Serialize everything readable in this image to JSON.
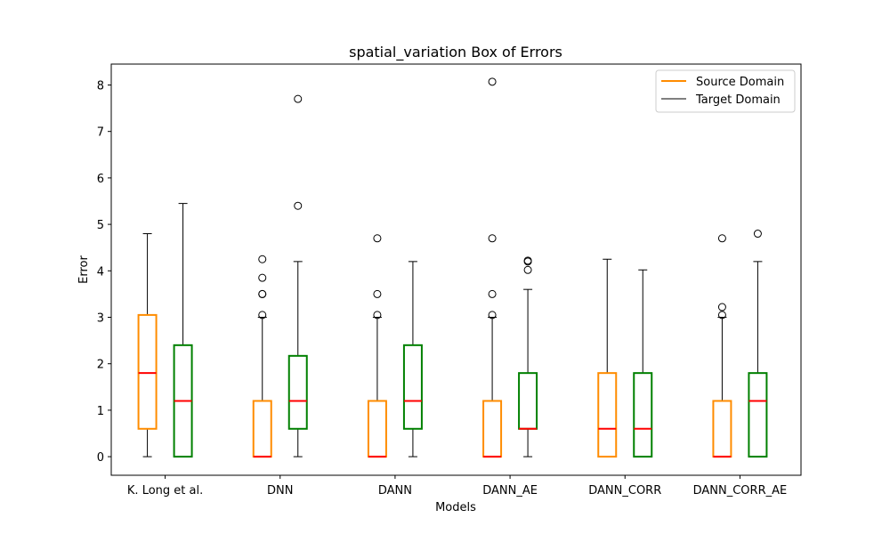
{
  "chart_data": {
    "type": "box",
    "title": "spatial_variation Box of Errors",
    "xlabel": "Models",
    "ylabel": "Error",
    "ylim": [
      -0.4,
      8.45
    ],
    "yticks": [
      0,
      1,
      2,
      3,
      4,
      5,
      6,
      7,
      8
    ],
    "grid": false,
    "legend_position": "top-right",
    "categories": [
      "K. Long et al.",
      "DNN",
      "DANN",
      "DANN_AE",
      "DANN_CORR",
      "DANN_CORR_AE"
    ],
    "series": [
      {
        "name": "Source Domain",
        "box_color": "#ff8c00",
        "legend_line_color": "#ff8c00",
        "median_color": "#ff0000",
        "boxes": [
          {
            "whislo": 0,
            "q1": 0.6,
            "med": 1.8,
            "q3": 3.05,
            "whishi": 4.8,
            "fliers": []
          },
          {
            "whislo": 0,
            "q1": 0,
            "med": 0,
            "q3": 1.2,
            "whishi": 3.0,
            "fliers": [
              3.05,
              3.5,
              3.5,
              3.85,
              4.25
            ]
          },
          {
            "whislo": 0,
            "q1": 0,
            "med": 0,
            "q3": 1.2,
            "whishi": 3.0,
            "fliers": [
              3.05,
              3.5,
              4.7
            ]
          },
          {
            "whislo": 0,
            "q1": 0,
            "med": 0,
            "q3": 1.2,
            "whishi": 3.0,
            "fliers": [
              3.05,
              3.5,
              4.7,
              8.07
            ]
          },
          {
            "whislo": 0,
            "q1": 0,
            "med": 0.6,
            "q3": 1.8,
            "whishi": 4.25,
            "fliers": []
          },
          {
            "whislo": 0,
            "q1": 0,
            "med": 0,
            "q3": 1.2,
            "whishi": 3.0,
            "fliers": [
              3.05,
              3.22,
              4.7
            ]
          }
        ]
      },
      {
        "name": "Target Domain",
        "box_color": "#008000",
        "legend_line_color": "#000000",
        "median_color": "#ff0000",
        "boxes": [
          {
            "whislo": 0,
            "q1": 0,
            "med": 1.2,
            "q3": 2.4,
            "whishi": 5.45,
            "fliers": []
          },
          {
            "whislo": 0,
            "q1": 0.6,
            "med": 1.2,
            "q3": 2.17,
            "whishi": 4.2,
            "fliers": [
              5.4,
              7.7
            ]
          },
          {
            "whislo": 0,
            "q1": 0.6,
            "med": 1.2,
            "q3": 2.4,
            "whishi": 4.2,
            "fliers": []
          },
          {
            "whislo": 0,
            "q1": 0.6,
            "med": 0.6,
            "q3": 1.8,
            "whishi": 3.6,
            "fliers": [
              4.02,
              4.2,
              4.22
            ]
          },
          {
            "whislo": 0,
            "q1": 0,
            "med": 0.6,
            "q3": 1.8,
            "whishi": 4.02,
            "fliers": []
          },
          {
            "whislo": 0,
            "q1": 0,
            "med": 1.2,
            "q3": 1.8,
            "whishi": 4.2,
            "fliers": [
              4.8
            ]
          }
        ]
      }
    ]
  }
}
